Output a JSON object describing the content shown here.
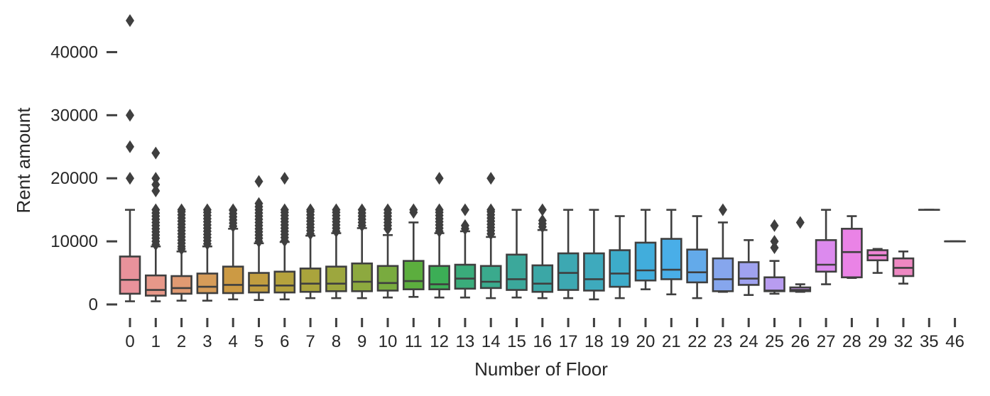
{
  "chart_data": {
    "type": "box",
    "title": "",
    "xlabel": "Number of Floor",
    "ylabel": "Rent amount",
    "ylim": [
      0,
      45000
    ],
    "yticks": [
      0,
      10000,
      20000,
      30000,
      40000
    ],
    "ytick_labels": [
      "0",
      "10000",
      "20000",
      "30000",
      "40000"
    ],
    "grid": false,
    "categories": [
      "0",
      "1",
      "2",
      "3",
      "4",
      "5",
      "6",
      "7",
      "8",
      "9",
      "10",
      "11",
      "12",
      "13",
      "14",
      "15",
      "16",
      "17",
      "18",
      "19",
      "20",
      "21",
      "22",
      "23",
      "24",
      "25",
      "26",
      "27",
      "28",
      "29",
      "32",
      "35",
      "46"
    ],
    "boxes": [
      {
        "category": "0",
        "whislo": 500,
        "q1": 1700,
        "med": 3900,
        "q3": 7600,
        "whishi": 15000,
        "fliers": [
          20000,
          25000,
          30000,
          45000
        ],
        "color": "#e8929b"
      },
      {
        "category": "1",
        "whislo": 500,
        "q1": 1400,
        "med": 2300,
        "q3": 4600,
        "whishi": 9200,
        "fliers": [
          9500,
          10000,
          10500,
          11000,
          11500,
          12000,
          12500,
          13000,
          13500,
          14000,
          14500,
          15000,
          18000,
          19000,
          20000,
          24000
        ],
        "color": "#e79889"
      },
      {
        "category": "2",
        "whislo": 600,
        "q1": 1700,
        "med": 2600,
        "q3": 4500,
        "whishi": 8400,
        "fliers": [
          8800,
          9200,
          9700,
          10200,
          10700,
          11200,
          11700,
          12200,
          12700,
          13200,
          13700,
          14200,
          14700,
          15000
        ],
        "color": "#e09a72"
      },
      {
        "category": "3",
        "whislo": 600,
        "q1": 1800,
        "med": 2800,
        "q3": 4900,
        "whishi": 9200,
        "fliers": [
          9600,
          10100,
          10600,
          11100,
          11600,
          12100,
          12600,
          13100,
          13600,
          14100,
          14600,
          15000
        ],
        "color": "#d69c59"
      },
      {
        "category": "4",
        "whislo": 800,
        "q1": 1800,
        "med": 3100,
        "q3": 6000,
        "whishi": 12000,
        "fliers": [
          12400,
          12900,
          13400,
          13900,
          14400,
          14900,
          15000
        ],
        "color": "#cc9a44"
      },
      {
        "category": "5",
        "whislo": 700,
        "q1": 1900,
        "med": 3000,
        "q3": 5000,
        "whishi": 9700,
        "fliers": [
          10000,
          10500,
          11000,
          11500,
          12000,
          12500,
          13000,
          13500,
          14000,
          14500,
          15000,
          15500,
          16000,
          19500
        ],
        "color": "#c19d40"
      },
      {
        "category": "6",
        "whislo": 800,
        "q1": 1900,
        "med": 3000,
        "q3": 5200,
        "whishi": 9900,
        "fliers": [
          10100,
          10600,
          11100,
          11600,
          12100,
          12600,
          13100,
          13600,
          14100,
          14600,
          15000,
          20000
        ],
        "color": "#b5a23d"
      },
      {
        "category": "7",
        "whislo": 1000,
        "q1": 2000,
        "med": 3300,
        "q3": 5700,
        "whishi": 10900,
        "fliers": [
          11200,
          11700,
          12200,
          12700,
          13200,
          13700,
          14200,
          14700,
          15000
        ],
        "color": "#aaa43c"
      },
      {
        "category": "8",
        "whislo": 1000,
        "q1": 2100,
        "med": 3300,
        "q3": 6000,
        "whishi": 11300,
        "fliers": [
          11600,
          12100,
          12600,
          13100,
          13600,
          14100,
          14600,
          15000
        ],
        "color": "#9da73e"
      },
      {
        "category": "9",
        "whislo": 1000,
        "q1": 2100,
        "med": 3600,
        "q3": 6500,
        "whishi": 12100,
        "fliers": [
          12500,
          13000,
          13500,
          14000,
          14500,
          15000
        ],
        "color": "#8da93f"
      },
      {
        "category": "10",
        "whislo": 1100,
        "q1": 2200,
        "med": 3400,
        "q3": 6100,
        "whishi": 11000,
        "fliers": [
          12000,
          12500,
          13000,
          13500,
          14000,
          14500,
          15000
        ],
        "color": "#79ab3f"
      },
      {
        "category": "11",
        "whislo": 1200,
        "q1": 2400,
        "med": 3700,
        "q3": 6900,
        "whishi": 13000,
        "fliers": [
          14600,
          15000
        ],
        "color": "#5cae3e"
      },
      {
        "category": "12",
        "whislo": 1100,
        "q1": 2400,
        "med": 3200,
        "q3": 6100,
        "whishi": 11300,
        "fliers": [
          11600,
          12100,
          12600,
          13100,
          13600,
          14100,
          14600,
          15000,
          20000
        ],
        "color": "#3cae56"
      },
      {
        "category": "13",
        "whislo": 1100,
        "q1": 2500,
        "med": 4100,
        "q3": 6300,
        "whishi": 11600,
        "fliers": [
          12000,
          12500,
          15000
        ],
        "color": "#3aac7b"
      },
      {
        "category": "14",
        "whislo": 1000,
        "q1": 2600,
        "med": 3600,
        "q3": 6100,
        "whishi": 10700,
        "fliers": [
          11200,
          11700,
          12200,
          12700,
          13200,
          13700,
          14200,
          14700,
          15000,
          20000
        ],
        "color": "#3aaa8d"
      },
      {
        "category": "15",
        "whislo": 1100,
        "q1": 2300,
        "med": 4000,
        "q3": 7900,
        "whishi": 15000,
        "fliers": [],
        "color": "#3ba89b"
      },
      {
        "category": "16",
        "whislo": 1000,
        "q1": 2000,
        "med": 3300,
        "q3": 6200,
        "whishi": 11800,
        "fliers": [
          12300,
          12800,
          13300,
          15000
        ],
        "color": "#3ba7a6"
      },
      {
        "category": "17",
        "whislo": 1000,
        "q1": 2300,
        "med": 5000,
        "q3": 8100,
        "whishi": 15000,
        "fliers": [],
        "color": "#3da8b2"
      },
      {
        "category": "18",
        "whislo": 800,
        "q1": 2200,
        "med": 4000,
        "q3": 8100,
        "whishi": 15000,
        "fliers": [],
        "color": "#3eaabd"
      },
      {
        "category": "19",
        "whislo": 1000,
        "q1": 2800,
        "med": 4900,
        "q3": 8600,
        "whishi": 14000,
        "fliers": [],
        "color": "#3dacca"
      },
      {
        "category": "20",
        "whislo": 2400,
        "q1": 3800,
        "med": 5400,
        "q3": 9800,
        "whishi": 15000,
        "fliers": [],
        "color": "#41addc"
      },
      {
        "category": "21",
        "whislo": 1600,
        "q1": 4000,
        "med": 5500,
        "q3": 10400,
        "whishi": 15000,
        "fliers": [],
        "color": "#49aee8"
      },
      {
        "category": "22",
        "whislo": 1000,
        "q1": 3500,
        "med": 5100,
        "q3": 8700,
        "whishi": 14000,
        "fliers": [],
        "color": "#63aaea"
      },
      {
        "category": "23",
        "whislo": 2000,
        "q1": 2100,
        "med": 4000,
        "q3": 7300,
        "whishi": 13000,
        "fliers": [
          15000
        ],
        "color": "#86a6ed"
      },
      {
        "category": "24",
        "whislo": 1500,
        "q1": 3100,
        "med": 4100,
        "q3": 6700,
        "whishi": 10200,
        "fliers": [],
        "color": "#9fa2ef"
      },
      {
        "category": "25",
        "whislo": 1700,
        "q1": 2100,
        "med": 2200,
        "q3": 4300,
        "whishi": 6900,
        "fliers": [
          9000,
          10000,
          12500
        ],
        "color": "#b89cf0"
      },
      {
        "category": "26",
        "whislo": 2000,
        "q1": 2100,
        "med": 2300,
        "q3": 2700,
        "whishi": 3200,
        "fliers": [
          13000
        ],
        "color": "#cb95f0"
      },
      {
        "category": "27",
        "whislo": 3200,
        "q1": 5200,
        "med": 6300,
        "q3": 10200,
        "whishi": 15000,
        "fliers": [],
        "color": "#dc8aee"
      },
      {
        "category": "28",
        "whislo": 4200,
        "q1": 4300,
        "med": 8300,
        "q3": 12000,
        "whishi": 14000,
        "fliers": [],
        "color": "#ea83e6"
      },
      {
        "category": "29",
        "whislo": 5000,
        "q1": 7000,
        "med": 7800,
        "q3": 8600,
        "whishi": 8800,
        "fliers": [],
        "color": "#ed85d4"
      },
      {
        "category": "32",
        "whislo": 3300,
        "q1": 4500,
        "med": 5800,
        "q3": 7300,
        "whishi": 8400,
        "fliers": [],
        "color": "#ee88c2"
      },
      {
        "category": "35",
        "whislo": 15000,
        "q1": 15000,
        "med": 15000,
        "q3": 15000,
        "whishi": 15000,
        "fliers": [],
        "color": "#ef8bb3"
      },
      {
        "category": "46",
        "whislo": 10000,
        "q1": 10000,
        "med": 10000,
        "q3": 10000,
        "whishi": 10000,
        "fliers": [],
        "color": "#ef8ea5"
      }
    ]
  }
}
